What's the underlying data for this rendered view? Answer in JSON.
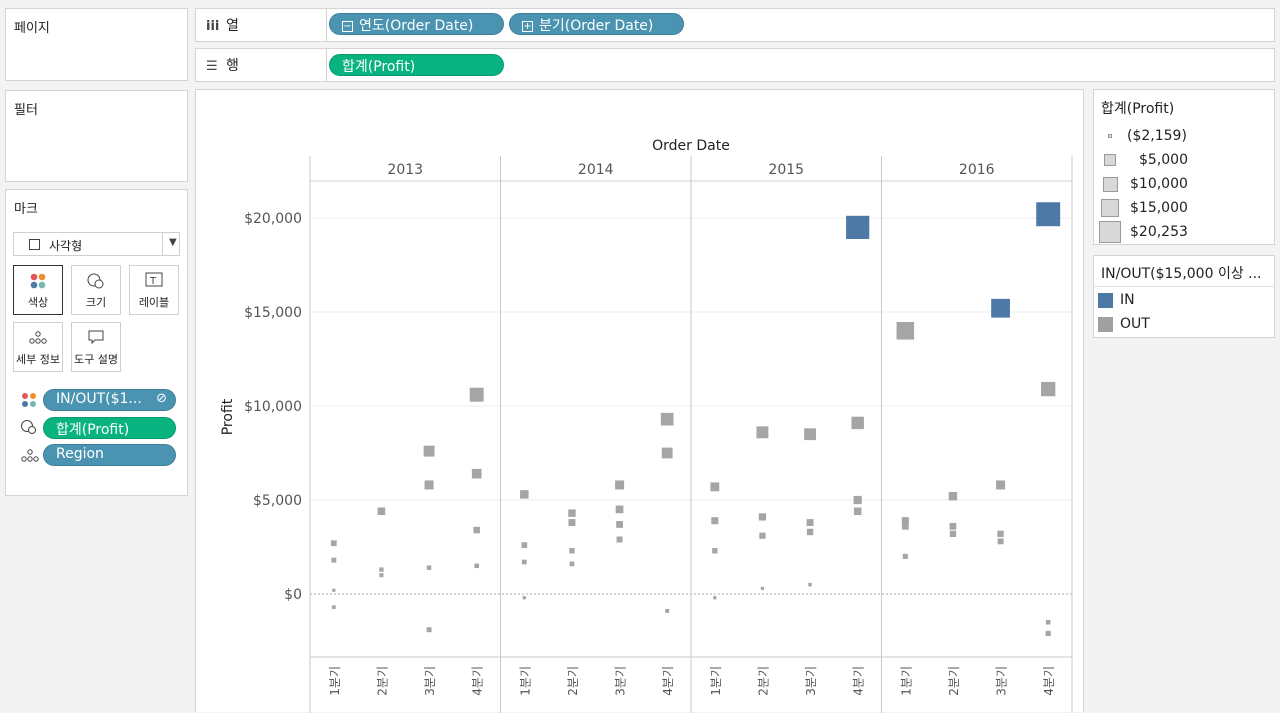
{
  "left_panel": {
    "pages_title": "페이지",
    "filters_title": "필터",
    "marks_title": "마크",
    "mark_type": "사각형",
    "mark_buttons": [
      "색상",
      "크기",
      "레이블",
      "세부 정보",
      "도구 설명"
    ],
    "mark_pills": [
      "IN/OUT($1...",
      "합계(Profit)",
      "Region"
    ]
  },
  "shelves": {
    "columns_label": "열",
    "columns_pills": [
      "연도(Order Date)",
      "분기(Order Date)"
    ],
    "rows_label": "행",
    "rows_pills": [
      "합계(Profit)"
    ]
  },
  "size_legend": {
    "title": "합계(Profit)",
    "items": [
      "($2,159)",
      "$5,000",
      "$10,000",
      "$15,000",
      "$20,253"
    ]
  },
  "color_legend": {
    "title": "IN/OUT($15,000 이상 ...",
    "items": [
      {
        "label": "IN",
        "color": "#4e79a7"
      },
      {
        "label": "OUT",
        "color": "#a0a0a0"
      }
    ]
  },
  "chart_data": {
    "type": "scatter",
    "title": "Order Date",
    "ylabel": "Profit",
    "y_ticks": [
      "$20,000",
      "$15,000",
      "$10,000",
      "$5,000",
      "$0"
    ],
    "ylim": [
      -3500,
      23000
    ],
    "years": [
      "2013",
      "2014",
      "2015",
      "2016"
    ],
    "quarters": [
      "1분기",
      "2분기",
      "3분기",
      "4분기"
    ],
    "points": [
      {
        "year": "2013",
        "q": 1,
        "v": 2700
      },
      {
        "year": "2013",
        "q": 1,
        "v": 1800
      },
      {
        "year": "2013",
        "q": 1,
        "v": 200
      },
      {
        "year": "2013",
        "q": 1,
        "v": -700
      },
      {
        "year": "2013",
        "q": 2,
        "v": 4400
      },
      {
        "year": "2013",
        "q": 2,
        "v": 1300
      },
      {
        "year": "2013",
        "q": 2,
        "v": 1000
      },
      {
        "year": "2013",
        "q": 3,
        "v": 7600
      },
      {
        "year": "2013",
        "q": 3,
        "v": 5800
      },
      {
        "year": "2013",
        "q": 3,
        "v": 1400
      },
      {
        "year": "2013",
        "q": 3,
        "v": -1900
      },
      {
        "year": "2013",
        "q": 4,
        "v": 10600
      },
      {
        "year": "2013",
        "q": 4,
        "v": 6400
      },
      {
        "year": "2013",
        "q": 4,
        "v": 3400
      },
      {
        "year": "2013",
        "q": 4,
        "v": 1500
      },
      {
        "year": "2014",
        "q": 1,
        "v": 5300
      },
      {
        "year": "2014",
        "q": 1,
        "v": 2600
      },
      {
        "year": "2014",
        "q": 1,
        "v": 1700
      },
      {
        "year": "2014",
        "q": 1,
        "v": -200
      },
      {
        "year": "2014",
        "q": 2,
        "v": 4300
      },
      {
        "year": "2014",
        "q": 2,
        "v": 3800
      },
      {
        "year": "2014",
        "q": 2,
        "v": 2300
      },
      {
        "year": "2014",
        "q": 2,
        "v": 1600
      },
      {
        "year": "2014",
        "q": 3,
        "v": 5800
      },
      {
        "year": "2014",
        "q": 3,
        "v": 4500
      },
      {
        "year": "2014",
        "q": 3,
        "v": 3700
      },
      {
        "year": "2014",
        "q": 3,
        "v": 2900
      },
      {
        "year": "2014",
        "q": 4,
        "v": 9300
      },
      {
        "year": "2014",
        "q": 4,
        "v": 7500
      },
      {
        "year": "2014",
        "q": 4,
        "v": -900
      },
      {
        "year": "2015",
        "q": 1,
        "v": 5700
      },
      {
        "year": "2015",
        "q": 1,
        "v": 3900
      },
      {
        "year": "2015",
        "q": 1,
        "v": 2300
      },
      {
        "year": "2015",
        "q": 1,
        "v": -200
      },
      {
        "year": "2015",
        "q": 2,
        "v": 8600
      },
      {
        "year": "2015",
        "q": 2,
        "v": 4100
      },
      {
        "year": "2015",
        "q": 2,
        "v": 3100
      },
      {
        "year": "2015",
        "q": 2,
        "v": 300
      },
      {
        "year": "2015",
        "q": 3,
        "v": 8500
      },
      {
        "year": "2015",
        "q": 3,
        "v": 3800
      },
      {
        "year": "2015",
        "q": 3,
        "v": 3300
      },
      {
        "year": "2015",
        "q": 3,
        "v": 500
      },
      {
        "year": "2015",
        "q": 4,
        "v": 19500,
        "in": true
      },
      {
        "year": "2015",
        "q": 4,
        "v": 9100
      },
      {
        "year": "2015",
        "q": 4,
        "v": 5000
      },
      {
        "year": "2015",
        "q": 4,
        "v": 4400
      },
      {
        "year": "2016",
        "q": 1,
        "v": 14000
      },
      {
        "year": "2016",
        "q": 1,
        "v": 3900
      },
      {
        "year": "2016",
        "q": 1,
        "v": 3600
      },
      {
        "year": "2016",
        "q": 1,
        "v": 2000
      },
      {
        "year": "2016",
        "q": 2,
        "v": 5200
      },
      {
        "year": "2016",
        "q": 2,
        "v": 3600
      },
      {
        "year": "2016",
        "q": 2,
        "v": 3200
      },
      {
        "year": "2016",
        "q": 3,
        "v": 15200,
        "in": true
      },
      {
        "year": "2016",
        "q": 3,
        "v": 5800
      },
      {
        "year": "2016",
        "q": 3,
        "v": 3200
      },
      {
        "year": "2016",
        "q": 3,
        "v": 2800
      },
      {
        "year": "2016",
        "q": 4,
        "v": 20200,
        "in": true
      },
      {
        "year": "2016",
        "q": 4,
        "v": 10900
      },
      {
        "year": "2016",
        "q": 4,
        "v": -1500
      },
      {
        "year": "2016",
        "q": 4,
        "v": -2100
      }
    ]
  }
}
